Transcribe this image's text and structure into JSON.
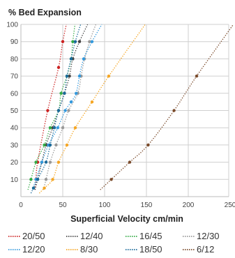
{
  "chart_data": {
    "type": "scatter",
    "title": "% Bed Expansion",
    "xlabel": "Superficial Velocity cm/min",
    "ylabel": "% Bed Expansion",
    "xlim": [
      0,
      250
    ],
    "ylim": [
      0,
      100
    ],
    "x_ticks": [
      0,
      50,
      100,
      150,
      200,
      250
    ],
    "y_ticks": [
      10,
      20,
      30,
      40,
      50,
      60,
      70,
      80,
      90,
      100
    ],
    "grid": true,
    "legend_position": "bottom",
    "series": [
      {
        "name": "20/50",
        "color": "#cc2222",
        "points": [
          [
            18,
            10
          ],
          [
            20,
            20
          ],
          [
            32,
            50
          ],
          [
            45,
            75
          ],
          [
            50,
            90
          ]
        ]
      },
      {
        "name": "12/40",
        "color": "#444444",
        "points": [
          [
            20,
            10
          ],
          [
            25,
            20
          ],
          [
            30,
            30
          ],
          [
            38,
            40
          ],
          [
            45,
            50
          ],
          [
            52,
            60
          ],
          [
            58,
            70
          ],
          [
            62,
            80
          ],
          [
            70,
            90
          ]
        ]
      },
      {
        "name": "16/45",
        "color": "#33aa44",
        "points": [
          [
            12,
            10
          ],
          [
            18,
            20
          ],
          [
            28,
            30
          ],
          [
            35,
            40
          ],
          [
            45,
            50
          ],
          [
            48,
            60
          ],
          [
            55,
            70
          ],
          [
            60,
            80
          ],
          [
            62,
            90
          ]
        ]
      },
      {
        "name": "12/30",
        "color": "#999999",
        "points": [
          [
            30,
            10
          ],
          [
            35,
            20
          ],
          [
            42,
            30
          ],
          [
            50,
            40
          ],
          [
            57,
            50
          ],
          [
            68,
            60
          ],
          [
            72,
            70
          ],
          [
            76,
            80
          ],
          [
            82,
            90
          ]
        ]
      },
      {
        "name": "12/20",
        "color": "#3399dd",
        "points": [
          [
            18,
            10
          ],
          [
            25,
            20
          ],
          [
            33,
            30
          ],
          [
            44,
            40
          ],
          [
            53,
            50
          ],
          [
            60,
            55
          ],
          [
            66,
            60
          ],
          [
            70,
            70
          ],
          [
            75,
            80
          ],
          [
            85,
            90
          ]
        ]
      },
      {
        "name": "8/30",
        "color": "#f5a623",
        "points": [
          [
            28,
            5
          ],
          [
            38,
            10
          ],
          [
            45,
            20
          ],
          [
            55,
            30
          ],
          [
            65,
            40
          ],
          [
            85,
            55
          ],
          [
            105,
            70
          ]
        ]
      },
      {
        "name": "18/50",
        "color": "#1a6a9a",
        "points": [
          [
            15,
            5
          ],
          [
            20,
            10
          ],
          [
            30,
            20
          ],
          [
            35,
            30
          ],
          [
            40,
            40
          ],
          [
            45,
            50
          ],
          [
            52,
            60
          ],
          [
            55,
            70
          ],
          [
            60,
            80
          ],
          [
            65,
            90
          ]
        ]
      },
      {
        "name": "6/12",
        "color": "#7a4a2a",
        "points": [
          [
            108,
            10
          ],
          [
            130,
            20
          ],
          [
            152,
            30
          ],
          [
            183,
            50
          ],
          [
            210,
            70
          ]
        ]
      }
    ]
  }
}
